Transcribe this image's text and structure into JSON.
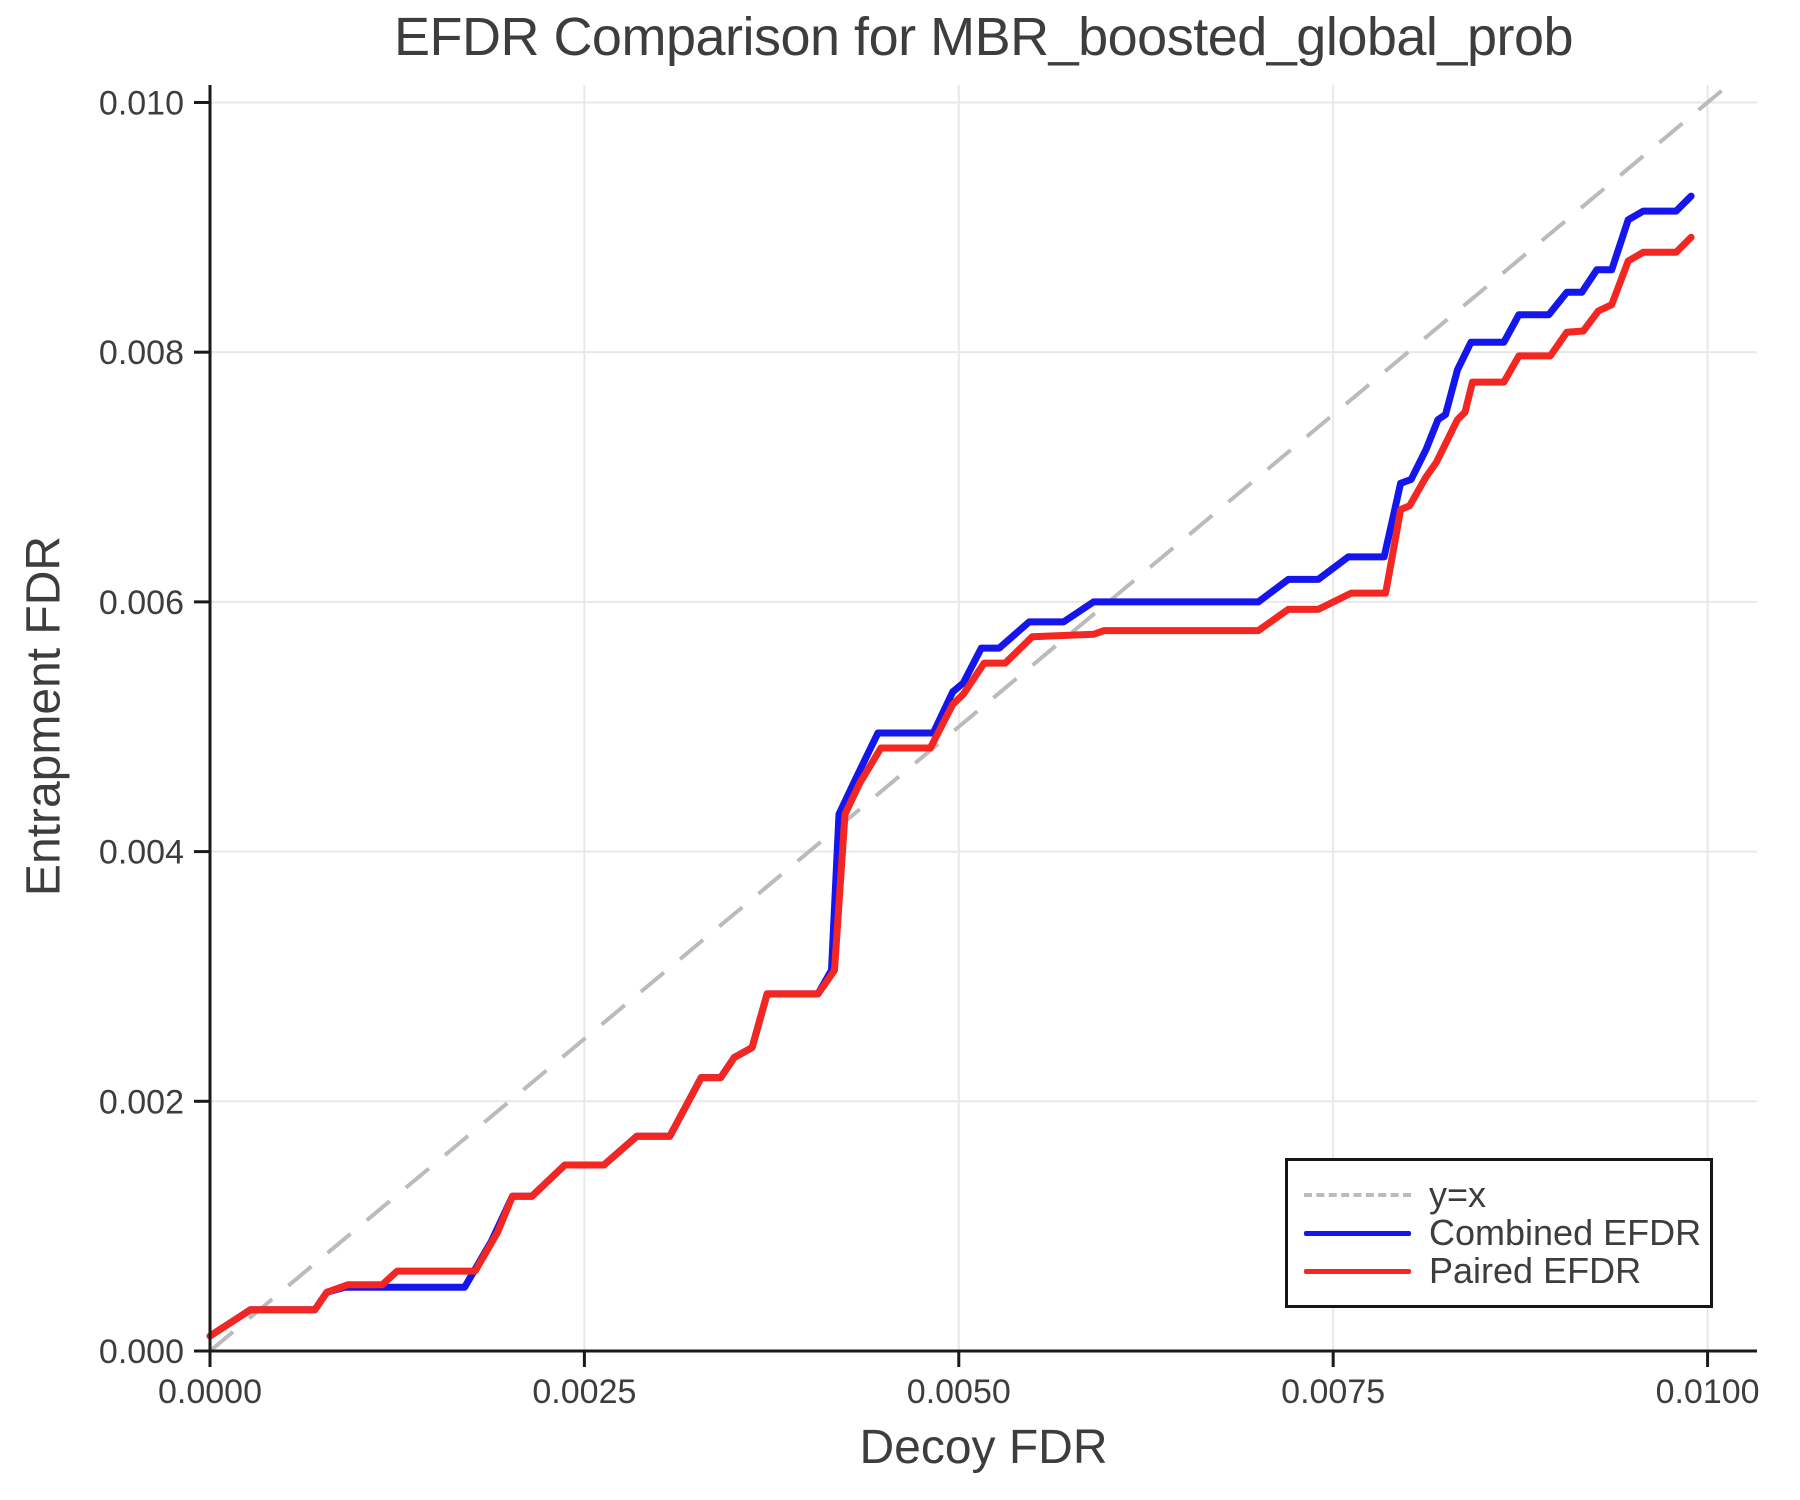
{
  "figure": {
    "title": "EFDR Comparison for MBR_boosted_global_prob",
    "x_axis_label": "Decoy FDR",
    "y_axis_label": "Entrapment FDR"
  },
  "legend": {
    "position": "lower right",
    "entries": [
      {
        "label": "y=x",
        "style": "dashed",
        "color": "#bbbbbb"
      },
      {
        "label": "Combined EFDR",
        "style": "solid",
        "color": "#1515ee"
      },
      {
        "label": "Paired EFDR",
        "style": "solid",
        "color": "#f32622"
      }
    ]
  },
  "chart_data": {
    "type": "line",
    "title": "EFDR Comparison for MBR_boosted_global_prob",
    "xlabel": "Decoy FDR",
    "ylabel": "Entrapment FDR",
    "xlim": [
      0,
      0.01033
    ],
    "ylim": [
      0,
      0.01014
    ],
    "grid": true,
    "grid_color": "#e8e8e8",
    "spine_color": "#1a1a1a",
    "tick_text_color": "#3d3d3d",
    "legend_position": "lower right",
    "x_ticks": {
      "values": [
        0,
        0.0025,
        0.005,
        0.0075,
        0.01
      ],
      "labels": [
        "0.0000",
        "0.0025",
        "0.0050",
        "0.0075",
        "0.0100"
      ]
    },
    "y_ticks": {
      "values": [
        0,
        0.002,
        0.004,
        0.006,
        0.008,
        0.01
      ],
      "labels": [
        "0.000",
        "0.002",
        "0.004",
        "0.006",
        "0.008",
        "0.010"
      ]
    },
    "series": [
      {
        "name": "y=x",
        "style": "dashed",
        "color": "#bbbbbb",
        "width": 4,
        "points": [
          [
            0,
            0
          ],
          [
            0.01014,
            0.01014
          ]
        ]
      },
      {
        "name": "Combined EFDR",
        "style": "solid",
        "color": "#1515ee",
        "width": 7,
        "points": [
          [
            0.0,
            0.00012
          ],
          [
            0.00027,
            0.00033
          ],
          [
            0.0007,
            0.00033
          ],
          [
            0.00078,
            0.00047
          ],
          [
            0.0009,
            0.00051
          ],
          [
            0.0017,
            0.00051
          ],
          [
            0.00188,
            0.00088
          ],
          [
            0.00202,
            0.00124
          ],
          [
            0.00215,
            0.00124
          ],
          [
            0.00237,
            0.00149
          ],
          [
            0.00263,
            0.00149
          ],
          [
            0.00285,
            0.00172
          ],
          [
            0.00307,
            0.00172
          ],
          [
            0.00328,
            0.00219
          ],
          [
            0.00341,
            0.00219
          ],
          [
            0.0035,
            0.00235
          ],
          [
            0.00362,
            0.00243
          ],
          [
            0.00372,
            0.00286
          ],
          [
            0.00406,
            0.00286
          ],
          [
            0.00415,
            0.00305
          ],
          [
            0.0042,
            0.0043
          ],
          [
            0.00431,
            0.00458
          ],
          [
            0.00446,
            0.00495
          ],
          [
            0.00483,
            0.00495
          ],
          [
            0.00496,
            0.00528
          ],
          [
            0.00503,
            0.00535
          ],
          [
            0.00515,
            0.00563
          ],
          [
            0.00527,
            0.00563
          ],
          [
            0.00547,
            0.00584
          ],
          [
            0.0057,
            0.00584
          ],
          [
            0.0059,
            0.006
          ],
          [
            0.007,
            0.006
          ],
          [
            0.0072,
            0.00618
          ],
          [
            0.0074,
            0.00618
          ],
          [
            0.0076,
            0.00636
          ],
          [
            0.00784,
            0.00636
          ],
          [
            0.0079,
            0.00668
          ],
          [
            0.00795,
            0.00695
          ],
          [
            0.00802,
            0.00698
          ],
          [
            0.00812,
            0.00722
          ],
          [
            0.0082,
            0.00746
          ],
          [
            0.00825,
            0.0075
          ],
          [
            0.00833,
            0.00786
          ],
          [
            0.00842,
            0.00808
          ],
          [
            0.00864,
            0.00808
          ],
          [
            0.00874,
            0.0083
          ],
          [
            0.00894,
            0.0083
          ],
          [
            0.00906,
            0.00848
          ],
          [
            0.00916,
            0.00848
          ],
          [
            0.00926,
            0.00866
          ],
          [
            0.00936,
            0.00866
          ],
          [
            0.00947,
            0.00906
          ],
          [
            0.00957,
            0.00913
          ],
          [
            0.00979,
            0.00913
          ],
          [
            0.00989,
            0.00925
          ]
        ]
      },
      {
        "name": "Paired EFDR",
        "style": "solid",
        "color": "#f32622",
        "width": 7,
        "points": [
          [
            0.0,
            0.00012
          ],
          [
            0.00027,
            0.00033
          ],
          [
            0.0007,
            0.00033
          ],
          [
            0.00078,
            0.00047
          ],
          [
            0.00092,
            0.00053
          ],
          [
            0.00115,
            0.00053
          ],
          [
            0.00125,
            0.00064
          ],
          [
            0.00177,
            0.00064
          ],
          [
            0.00192,
            0.00095
          ],
          [
            0.00202,
            0.00124
          ],
          [
            0.00215,
            0.00124
          ],
          [
            0.00237,
            0.00149
          ],
          [
            0.00263,
            0.00149
          ],
          [
            0.00285,
            0.00172
          ],
          [
            0.00307,
            0.00172
          ],
          [
            0.00328,
            0.00219
          ],
          [
            0.00341,
            0.00219
          ],
          [
            0.0035,
            0.00235
          ],
          [
            0.00362,
            0.00243
          ],
          [
            0.00372,
            0.00286
          ],
          [
            0.00406,
            0.00286
          ],
          [
            0.00417,
            0.00305
          ],
          [
            0.00424,
            0.0043
          ],
          [
            0.00434,
            0.00455
          ],
          [
            0.00448,
            0.00483
          ],
          [
            0.00481,
            0.00483
          ],
          [
            0.00496,
            0.00518
          ],
          [
            0.00503,
            0.00526
          ],
          [
            0.00517,
            0.00551
          ],
          [
            0.00531,
            0.00551
          ],
          [
            0.00549,
            0.00572
          ],
          [
            0.0059,
            0.00574
          ],
          [
            0.00597,
            0.00577
          ],
          [
            0.007,
            0.00577
          ],
          [
            0.0072,
            0.00594
          ],
          [
            0.0074,
            0.00594
          ],
          [
            0.00762,
            0.00607
          ],
          [
            0.00785,
            0.00607
          ],
          [
            0.0079,
            0.0064
          ],
          [
            0.00795,
            0.00674
          ],
          [
            0.00801,
            0.00677
          ],
          [
            0.00812,
            0.007
          ],
          [
            0.00819,
            0.00712
          ],
          [
            0.00833,
            0.00746
          ],
          [
            0.00838,
            0.00752
          ],
          [
            0.00843,
            0.00776
          ],
          [
            0.00864,
            0.00776
          ],
          [
            0.00874,
            0.00797
          ],
          [
            0.00895,
            0.00797
          ],
          [
            0.00906,
            0.00816
          ],
          [
            0.00917,
            0.00817
          ],
          [
            0.00927,
            0.00833
          ],
          [
            0.00936,
            0.00838
          ],
          [
            0.00947,
            0.00873
          ],
          [
            0.00957,
            0.0088
          ],
          [
            0.00979,
            0.0088
          ],
          [
            0.00989,
            0.00892
          ]
        ]
      }
    ]
  }
}
